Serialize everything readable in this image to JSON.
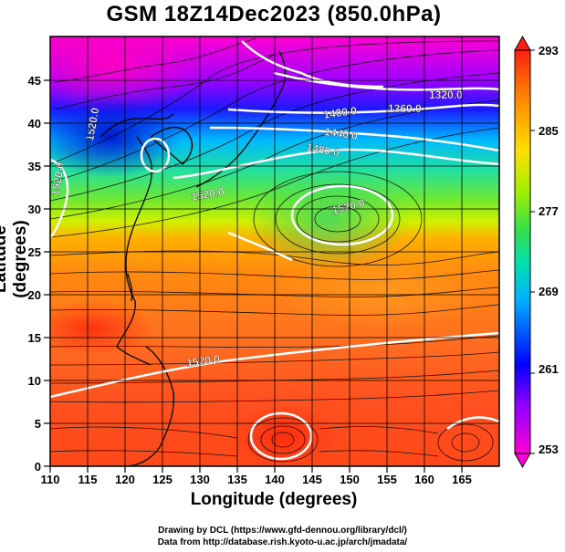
{
  "title": "GSM 18Z14Dec2023 (850.0hPa)",
  "xlabel": "Longitude (degrees)",
  "ylabel": "Latitude  (degrees)",
  "x_ticks": [
    "110",
    "115",
    "120",
    "125",
    "130",
    "135",
    "140",
    "145",
    "150",
    "155",
    "160",
    "165"
  ],
  "y_ticks": [
    "0",
    "5",
    "10",
    "15",
    "20",
    "25",
    "30",
    "35",
    "40",
    "45"
  ],
  "colorbar_ticks": [
    "253",
    "261",
    "269",
    "277",
    "285",
    "293"
  ],
  "contour_labels": [
    "1320.0",
    "1360.0",
    "1400.0",
    "1440.0",
    "1480.0",
    "1520.0",
    "1520.0",
    "1520.0",
    "1520.0",
    "1520.0"
  ],
  "credit_line1": "Drawing by DCL (https://www.gfd-dennou.org/library/dcl/)",
  "credit_line2": "Data from http://database.rish.kyoto-u.ac.jp/arch/jmadata/",
  "chart_data": {
    "type": "heatmap",
    "variable_unit_range": [
      253,
      293
    ],
    "xlim": [
      110,
      170
    ],
    "ylim": [
      0,
      50
    ],
    "contours": [
      1320.0,
      1360.0,
      1400.0,
      1440.0,
      1480.0,
      1520.0
    ],
    "colormap": [
      "#ff00c8",
      "#8a00ff",
      "#0000ff",
      "#00a0ff",
      "#00e0c0",
      "#40e040",
      "#b0f000",
      "#ffe000",
      "#ff9000",
      "#ff3000"
    ]
  }
}
